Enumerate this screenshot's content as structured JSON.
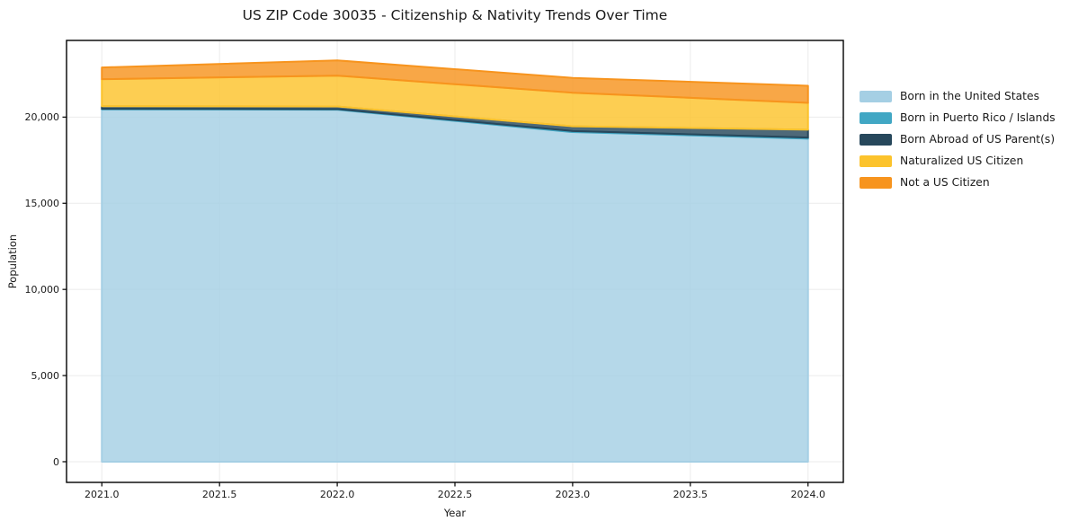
{
  "chart_data": {
    "type": "area",
    "stacked": true,
    "title": "US ZIP Code 30035 - Citizenship & Nativity Trends Over Time",
    "xlabel": "Year",
    "ylabel": "Population",
    "x": [
      2021,
      2022,
      2023,
      2024
    ],
    "series": [
      {
        "name": "Born in the United States",
        "color": "#a5cfe4",
        "values": [
          20450,
          20430,
          19130,
          18750
        ]
      },
      {
        "name": "Born in Puerto Rico / Islands",
        "color": "#41a7c4",
        "values": [
          30,
          35,
          60,
          65
        ]
      },
      {
        "name": "Born Abroad of US Parent(s)",
        "color": "#27485c",
        "values": [
          150,
          150,
          275,
          455
        ]
      },
      {
        "name": "Naturalized US Citizen",
        "color": "#fcc32c",
        "values": [
          1570,
          1790,
          1950,
          1560
        ]
      },
      {
        "name": "Not a US Citizen",
        "color": "#f7941e",
        "values": [
          680,
          885,
          860,
          990
        ]
      }
    ],
    "totals": [
      22880,
      23290,
      22275,
      21820
    ],
    "xlim": [
      2020.85,
      2024.15
    ],
    "ylim": [
      -1200,
      24450
    ],
    "xticks": [
      2021.0,
      2021.5,
      2022.0,
      2022.5,
      2023.0,
      2023.5,
      2024.0
    ],
    "xtick_labels": [
      "2021.0",
      "2021.5",
      "2022.0",
      "2022.5",
      "2023.0",
      "2023.5",
      "2024.0"
    ],
    "yticks": [
      0,
      5000,
      10000,
      15000,
      20000
    ],
    "ytick_labels": [
      "0",
      "5,000",
      "10,000",
      "15,000",
      "20,000"
    ],
    "grid": true,
    "grid_color": "#ebebeb",
    "axis_color": "#000000",
    "text_color": "#1a1a1a",
    "fill_opacity": 0.82,
    "legend_position": "right-outside"
  }
}
